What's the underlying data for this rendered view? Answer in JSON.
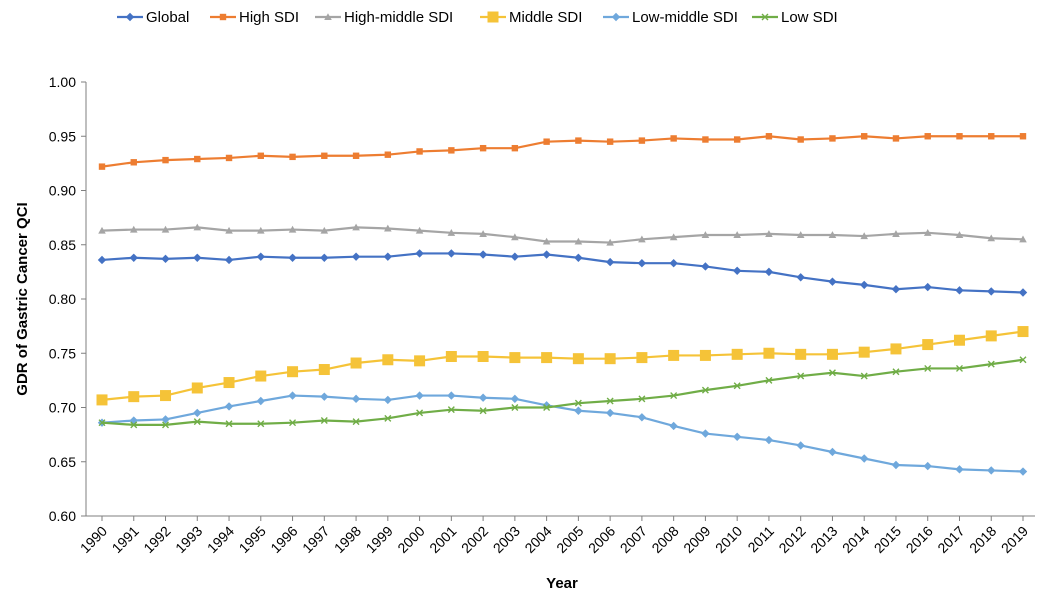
{
  "chart_data": {
    "type": "line",
    "title": "",
    "xlabel": "Year",
    "ylabel": "GDR of Gastric Cancer QCI",
    "ylim": [
      0.6,
      1.0
    ],
    "y_ticks": [
      "0.60",
      "0.65",
      "0.70",
      "0.75",
      "0.80",
      "0.85",
      "0.90",
      "0.95",
      "1.00"
    ],
    "x": [
      "1990",
      "1991",
      "1992",
      "1993",
      "1994",
      "1995",
      "1996",
      "1997",
      "1998",
      "1999",
      "2000",
      "2001",
      "2002",
      "2003",
      "2004",
      "2005",
      "2006",
      "2007",
      "2008",
      "2009",
      "2010",
      "2011",
      "2012",
      "2013",
      "2014",
      "2015",
      "2016",
      "2017",
      "2018",
      "2019"
    ],
    "grid": false,
    "legend_position": "top",
    "series": [
      {
        "name": "Global",
        "color": "#4472C4",
        "marker": "diamond",
        "values": [
          0.836,
          0.838,
          0.837,
          0.838,
          0.836,
          0.839,
          0.838,
          0.838,
          0.839,
          0.839,
          0.842,
          0.842,
          0.841,
          0.839,
          0.841,
          0.838,
          0.834,
          0.833,
          0.833,
          0.83,
          0.826,
          0.825,
          0.82,
          0.816,
          0.813,
          0.809,
          0.811,
          0.808,
          0.807,
          0.806
        ]
      },
      {
        "name": "High SDI",
        "color": "#ED7D31",
        "marker": "square",
        "values": [
          0.922,
          0.926,
          0.928,
          0.929,
          0.93,
          0.932,
          0.931,
          0.932,
          0.932,
          0.933,
          0.936,
          0.937,
          0.939,
          0.939,
          0.945,
          0.946,
          0.945,
          0.946,
          0.948,
          0.947,
          0.947,
          0.95,
          0.947,
          0.948,
          0.95,
          0.948,
          0.95,
          0.95,
          0.95,
          0.95
        ]
      },
      {
        "name": "High-middle SDI",
        "color": "#A5A5A5",
        "marker": "triangle",
        "values": [
          0.863,
          0.864,
          0.864,
          0.866,
          0.863,
          0.863,
          0.864,
          0.863,
          0.866,
          0.865,
          0.863,
          0.861,
          0.86,
          0.857,
          0.853,
          0.853,
          0.852,
          0.855,
          0.857,
          0.859,
          0.859,
          0.86,
          0.859,
          0.859,
          0.858,
          0.86,
          0.861,
          0.859,
          0.856,
          0.855
        ]
      },
      {
        "name": "Middle SDI",
        "color": "#F5C338",
        "marker": "bigsquare",
        "values": [
          0.707,
          0.71,
          0.711,
          0.718,
          0.723,
          0.729,
          0.733,
          0.735,
          0.741,
          0.744,
          0.743,
          0.747,
          0.747,
          0.746,
          0.746,
          0.745,
          0.745,
          0.746,
          0.748,
          0.748,
          0.749,
          0.75,
          0.749,
          0.749,
          0.751,
          0.754,
          0.758,
          0.762,
          0.766,
          0.77
        ]
      },
      {
        "name": "Low-middle SDI",
        "color": "#6FA8DC",
        "marker": "diamond",
        "values": [
          0.686,
          0.688,
          0.689,
          0.695,
          0.701,
          0.706,
          0.711,
          0.71,
          0.708,
          0.707,
          0.711,
          0.711,
          0.709,
          0.708,
          0.702,
          0.697,
          0.695,
          0.691,
          0.683,
          0.676,
          0.673,
          0.67,
          0.665,
          0.659,
          0.653,
          0.647,
          0.646,
          0.643,
          0.642,
          0.641
        ]
      },
      {
        "name": "Low SDI",
        "color": "#70AD47",
        "marker": "x",
        "values": [
          0.686,
          0.684,
          0.684,
          0.687,
          0.685,
          0.685,
          0.686,
          0.688,
          0.687,
          0.69,
          0.695,
          0.698,
          0.697,
          0.7,
          0.7,
          0.704,
          0.706,
          0.708,
          0.711,
          0.716,
          0.72,
          0.725,
          0.729,
          0.732,
          0.729,
          0.733,
          0.736,
          0.736,
          0.74,
          0.744
        ]
      }
    ]
  }
}
